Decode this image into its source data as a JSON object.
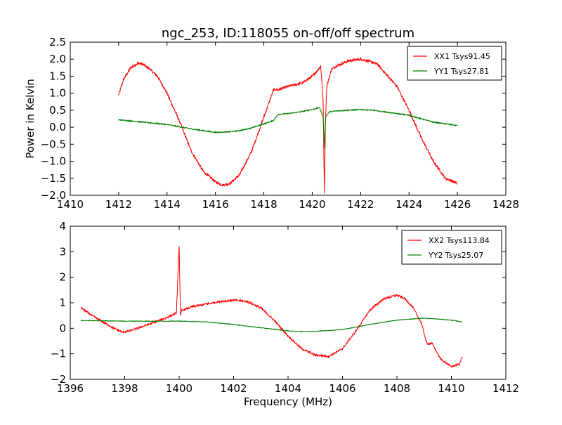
{
  "title": "ngc_253, ID:118055 on-off/off spectrum",
  "colors": {
    "xx": "#ff0000",
    "yy": "#008000"
  },
  "chart_data": [
    {
      "type": "line",
      "title": "ngc_253, ID:118055 on-off/off spectrum",
      "xlabel": "",
      "ylabel": "Power in Kelvin",
      "xlim": [
        1410,
        1428
      ],
      "ylim": [
        -2.0,
        2.5
      ],
      "xticks": [
        1410,
        1412,
        1414,
        1416,
        1418,
        1420,
        1422,
        1424,
        1426,
        1428
      ],
      "xtick_labels": [
        "1410",
        "1412",
        "1414",
        "1416",
        "1418",
        "1420",
        "1422",
        "1424",
        "1426",
        "1428"
      ],
      "yticks": [
        -2.0,
        -1.5,
        -1.0,
        -0.5,
        0.0,
        0.5,
        1.0,
        1.5,
        2.0,
        2.5
      ],
      "ytick_labels": [
        "−2.0",
        "−1.5",
        "−1.0",
        "−0.5",
        "0.0",
        "0.5",
        "1.0",
        "1.5",
        "2.0",
        "2.5"
      ],
      "legend_position": "top-right",
      "grid": false,
      "series": [
        {
          "name": "XX1 Tsys91.45",
          "color": "#ff0000",
          "noise": 0.04,
          "x": [
            1412.0,
            1412.2,
            1412.5,
            1412.8,
            1413.0,
            1413.3,
            1413.6,
            1414.0,
            1414.5,
            1415.0,
            1415.5,
            1416.0,
            1416.3,
            1416.6,
            1417.0,
            1417.5,
            1418.0,
            1418.2,
            1418.4,
            1418.6,
            1418.8,
            1419.0,
            1419.3,
            1419.6,
            1420.0,
            1420.2,
            1420.35,
            1420.45,
            1420.5,
            1420.55,
            1420.6,
            1420.8,
            1421.0,
            1421.5,
            1422.0,
            1422.3,
            1422.7,
            1423.0,
            1423.5,
            1424.0,
            1424.5,
            1425.0,
            1425.5,
            1426.0
          ],
          "y": [
            0.95,
            1.4,
            1.75,
            1.88,
            1.85,
            1.7,
            1.5,
            1.0,
            0.2,
            -0.7,
            -1.3,
            -1.6,
            -1.7,
            -1.65,
            -1.4,
            -0.7,
            0.3,
            0.7,
            1.1,
            1.1,
            1.15,
            1.2,
            1.25,
            1.3,
            1.5,
            1.65,
            1.8,
            0.8,
            -1.95,
            0.2,
            1.2,
            1.7,
            1.8,
            1.95,
            2.0,
            1.95,
            1.85,
            1.6,
            1.2,
            0.5,
            -0.3,
            -1.0,
            -1.5,
            -1.65
          ]
        },
        {
          "name": "YY1 Tsys27.81",
          "color": "#008000",
          "noise": 0.015,
          "x": [
            1412.0,
            1413.0,
            1414.0,
            1415.0,
            1416.0,
            1416.5,
            1417.0,
            1417.5,
            1418.0,
            1418.4,
            1418.6,
            1419.0,
            1419.5,
            1420.0,
            1420.3,
            1420.45,
            1420.5,
            1420.55,
            1420.7,
            1421.0,
            1422.0,
            1422.5,
            1423.0,
            1424.0,
            1425.0,
            1426.0
          ],
          "y": [
            0.22,
            0.15,
            0.08,
            -0.05,
            -0.15,
            -0.14,
            -0.1,
            -0.02,
            0.1,
            0.2,
            0.38,
            0.4,
            0.45,
            0.52,
            0.58,
            0.3,
            -0.6,
            0.3,
            0.45,
            0.48,
            0.52,
            0.5,
            0.45,
            0.35,
            0.15,
            0.05
          ]
        }
      ]
    },
    {
      "type": "line",
      "title": "",
      "xlabel": "Frequency (MHz)",
      "ylabel": "",
      "xlim": [
        1396,
        1412
      ],
      "ylim": [
        -2,
        4
      ],
      "xticks": [
        1396,
        1398,
        1400,
        1402,
        1404,
        1406,
        1408,
        1410,
        1412
      ],
      "xtick_labels": [
        "1396",
        "1398",
        "1400",
        "1402",
        "1404",
        "1406",
        "1408",
        "1410",
        "1412"
      ],
      "yticks": [
        -2,
        -1,
        0,
        1,
        2,
        3,
        4
      ],
      "ytick_labels": [
        "−2",
        "−1",
        "0",
        "1",
        "2",
        "3",
        "4"
      ],
      "legend_position": "top-right",
      "grid": false,
      "series": [
        {
          "name": "XX2 Tsys113.84",
          "color": "#ff0000",
          "noise": 0.04,
          "x": [
            1396.4,
            1396.8,
            1397.2,
            1397.6,
            1397.9,
            1398.2,
            1398.6,
            1399.0,
            1399.5,
            1399.9,
            1400.0,
            1400.05,
            1400.1,
            1400.5,
            1401.0,
            1401.5,
            1402.0,
            1402.5,
            1403.0,
            1403.5,
            1404.0,
            1404.5,
            1405.0,
            1405.5,
            1406.0,
            1406.5,
            1407.0,
            1407.5,
            1408.0,
            1408.3,
            1408.6,
            1408.9,
            1409.1,
            1409.3,
            1409.6,
            1410.0,
            1410.3,
            1410.4
          ],
          "y": [
            0.8,
            0.5,
            0.25,
            0.0,
            -0.15,
            -0.1,
            0.05,
            0.2,
            0.4,
            0.6,
            3.25,
            0.5,
            0.7,
            0.85,
            0.95,
            1.05,
            1.1,
            1.05,
            0.8,
            0.3,
            -0.3,
            -0.8,
            -1.05,
            -1.1,
            -0.8,
            -0.1,
            0.7,
            1.15,
            1.3,
            1.15,
            0.8,
            0.2,
            -0.6,
            -0.6,
            -1.2,
            -1.5,
            -1.4,
            -1.1
          ]
        },
        {
          "name": "YY2 Tsys25.07",
          "color": "#008000",
          "noise": 0.012,
          "x": [
            1396.4,
            1397.0,
            1398.0,
            1399.0,
            1400.0,
            1401.0,
            1402.0,
            1403.0,
            1404.0,
            1404.5,
            1405.0,
            1406.0,
            1407.0,
            1408.0,
            1409.0,
            1410.0,
            1410.4
          ],
          "y": [
            0.3,
            0.3,
            0.28,
            0.28,
            0.28,
            0.25,
            0.15,
            0.02,
            -0.1,
            -0.13,
            -0.12,
            -0.05,
            0.15,
            0.32,
            0.4,
            0.32,
            0.25
          ]
        }
      ]
    }
  ]
}
